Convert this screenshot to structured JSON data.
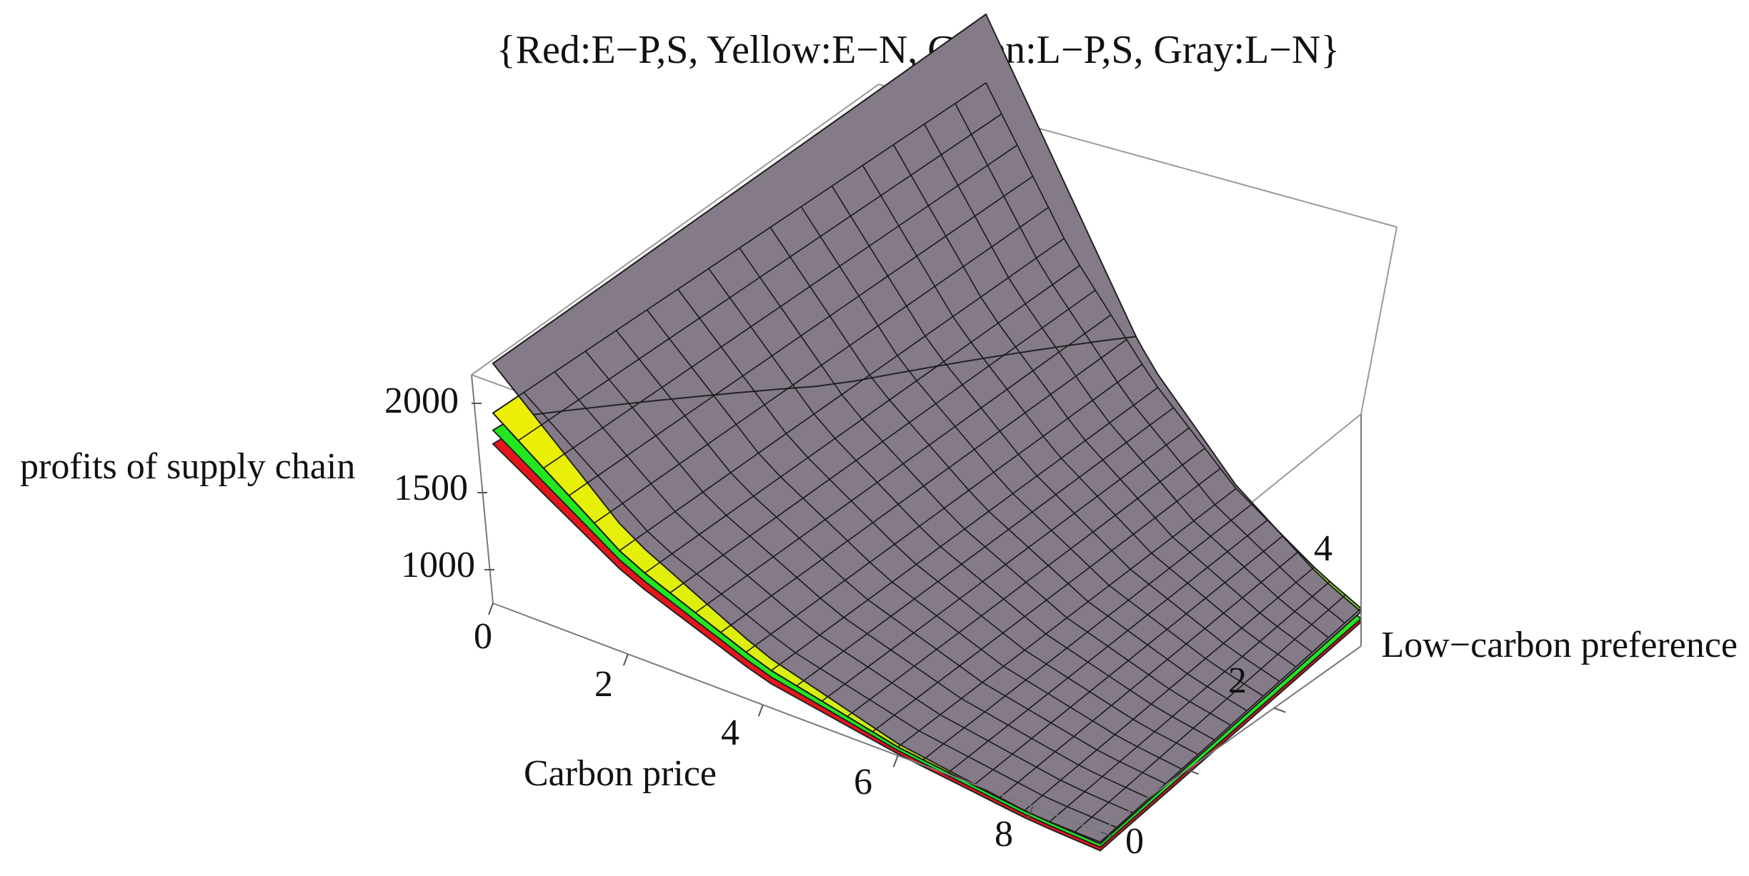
{
  "chart_data": {
    "type": "surface",
    "title": "{Red:E−P,S, Yellow:E−N, Green:L−P,S, Gray:L−N}",
    "xlabel": "Carbon price",
    "ylabel": "Low−carbon preference",
    "zlabel": "profits of supply chain",
    "x_ticks": [
      "0",
      "2",
      "4",
      "6",
      "8"
    ],
    "y_ticks": [
      "0",
      "2",
      "4"
    ],
    "z_ticks": [
      "1000",
      "1500",
      "2000"
    ],
    "xlim": [
      0,
      9
    ],
    "ylim": [
      0,
      6
    ],
    "zlim": [
      650,
      2500
    ],
    "grid": false,
    "legend": "in title",
    "series": [
      {
        "name": "Red",
        "strategy": "E−P,S",
        "color": "#e8141c",
        "sample_x": [
          0,
          2,
          4,
          6,
          8,
          9
        ],
        "z_at_y0": [
          1580,
          1100,
          800,
          660,
          560,
          540
        ],
        "z_at_y6": [
          2150,
          1600,
          1230,
          1000,
          850,
          790
        ]
      },
      {
        "name": "Yellow",
        "strategy": "E−N",
        "color": "#f4f000",
        "sample_x": [
          0,
          2,
          4,
          6,
          8,
          9
        ],
        "z_at_y0": [
          1760,
          1200,
          880,
          700,
          600,
          590
        ],
        "z_at_y6": [
          2500,
          1850,
          1400,
          1090,
          920,
          870
        ]
      },
      {
        "name": "Green",
        "strategy": "L−P,S",
        "color": "#22e61e",
        "sample_x": [
          0,
          2,
          4,
          6,
          8,
          9
        ],
        "z_at_y0": [
          1660,
          1150,
          840,
          680,
          580,
          560
        ],
        "z_at_y6": [
          2200,
          1650,
          1260,
          1020,
          870,
          810
        ]
      },
      {
        "name": "Gray",
        "strategy": "L−N",
        "color": "#857a88",
        "sample_x": [
          0,
          2,
          4,
          6,
          8,
          9
        ],
        "z_at_y0": [
          2050,
          1350,
          950,
          720,
          600,
          580
        ],
        "z_at_y6": [
          2900,
          2050,
          1480,
          1110,
          900,
          850
        ]
      }
    ]
  }
}
